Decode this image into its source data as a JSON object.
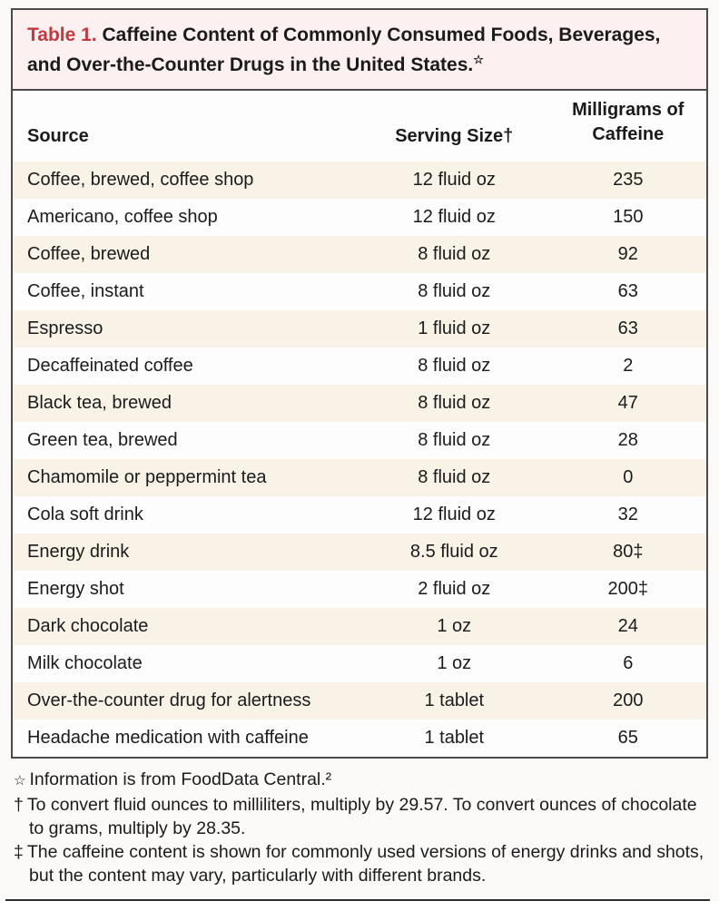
{
  "title": {
    "label": "Table 1.",
    "text": " Caffeine Content of Commonly Consumed Foods, Beverages, and Over-the-Counter Drugs in the United States.",
    "marker": "☆"
  },
  "table": {
    "columns": {
      "source": "Source",
      "serving_size": "Serving Size†",
      "caffeine": "Milligrams of Caffeine"
    },
    "rows": [
      {
        "source": "Coffee, brewed, coffee shop",
        "serving_size": "12 fluid oz",
        "caffeine_mg": "235"
      },
      {
        "source": "Americano, coffee shop",
        "serving_size": "12 fluid oz",
        "caffeine_mg": "150"
      },
      {
        "source": "Coffee, brewed",
        "serving_size": "8 fluid oz",
        "caffeine_mg": "92"
      },
      {
        "source": "Coffee, instant",
        "serving_size": "8 fluid oz",
        "caffeine_mg": "63"
      },
      {
        "source": "Espresso",
        "serving_size": "1 fluid oz",
        "caffeine_mg": "63"
      },
      {
        "source": "Decaffeinated coffee",
        "serving_size": "8 fluid oz",
        "caffeine_mg": "2"
      },
      {
        "source": "Black tea, brewed",
        "serving_size": "8 fluid oz",
        "caffeine_mg": "47"
      },
      {
        "source": "Green tea, brewed",
        "serving_size": "8 fluid oz",
        "caffeine_mg": "28"
      },
      {
        "source": "Chamomile or peppermint tea",
        "serving_size": "8 fluid oz",
        "caffeine_mg": "0"
      },
      {
        "source": "Cola soft drink",
        "serving_size": "12 fluid oz",
        "caffeine_mg": "32"
      },
      {
        "source": "Energy drink",
        "serving_size": "8.5 fluid oz",
        "caffeine_mg": "80‡"
      },
      {
        "source": "Energy shot",
        "serving_size": "2 fluid oz",
        "caffeine_mg": "200‡"
      },
      {
        "source": "Dark chocolate",
        "serving_size": "1 oz",
        "caffeine_mg": "24"
      },
      {
        "source": "Milk chocolate",
        "serving_size": "1 oz",
        "caffeine_mg": "6"
      },
      {
        "source": "Over-the-counter drug for alertness",
        "serving_size": "1 tablet",
        "caffeine_mg": "200"
      },
      {
        "source": "Headache medication with caffeine",
        "serving_size": "1 tablet",
        "caffeine_mg": "65"
      }
    ]
  },
  "footnotes": [
    {
      "marker": "☆",
      "text": "Information is from FoodData Central.²"
    },
    {
      "marker": "†",
      "text": "To convert fluid ounces to milliliters, multiply by 29.57. To convert ounces of chocolate to grams, multiply by 28.35."
    },
    {
      "marker": "‡",
      "text": "The caffeine content is shown for commonly used versions of energy drinks and shots, but the content may vary, particularly with different brands."
    }
  ],
  "colors": {
    "title_label_red": "#c03a40",
    "title_band_bg": "#fcf1f0",
    "zebra_row_bg": "#f9f2e7",
    "border": "#4a4a4a",
    "text": "#1b1b1b"
  }
}
